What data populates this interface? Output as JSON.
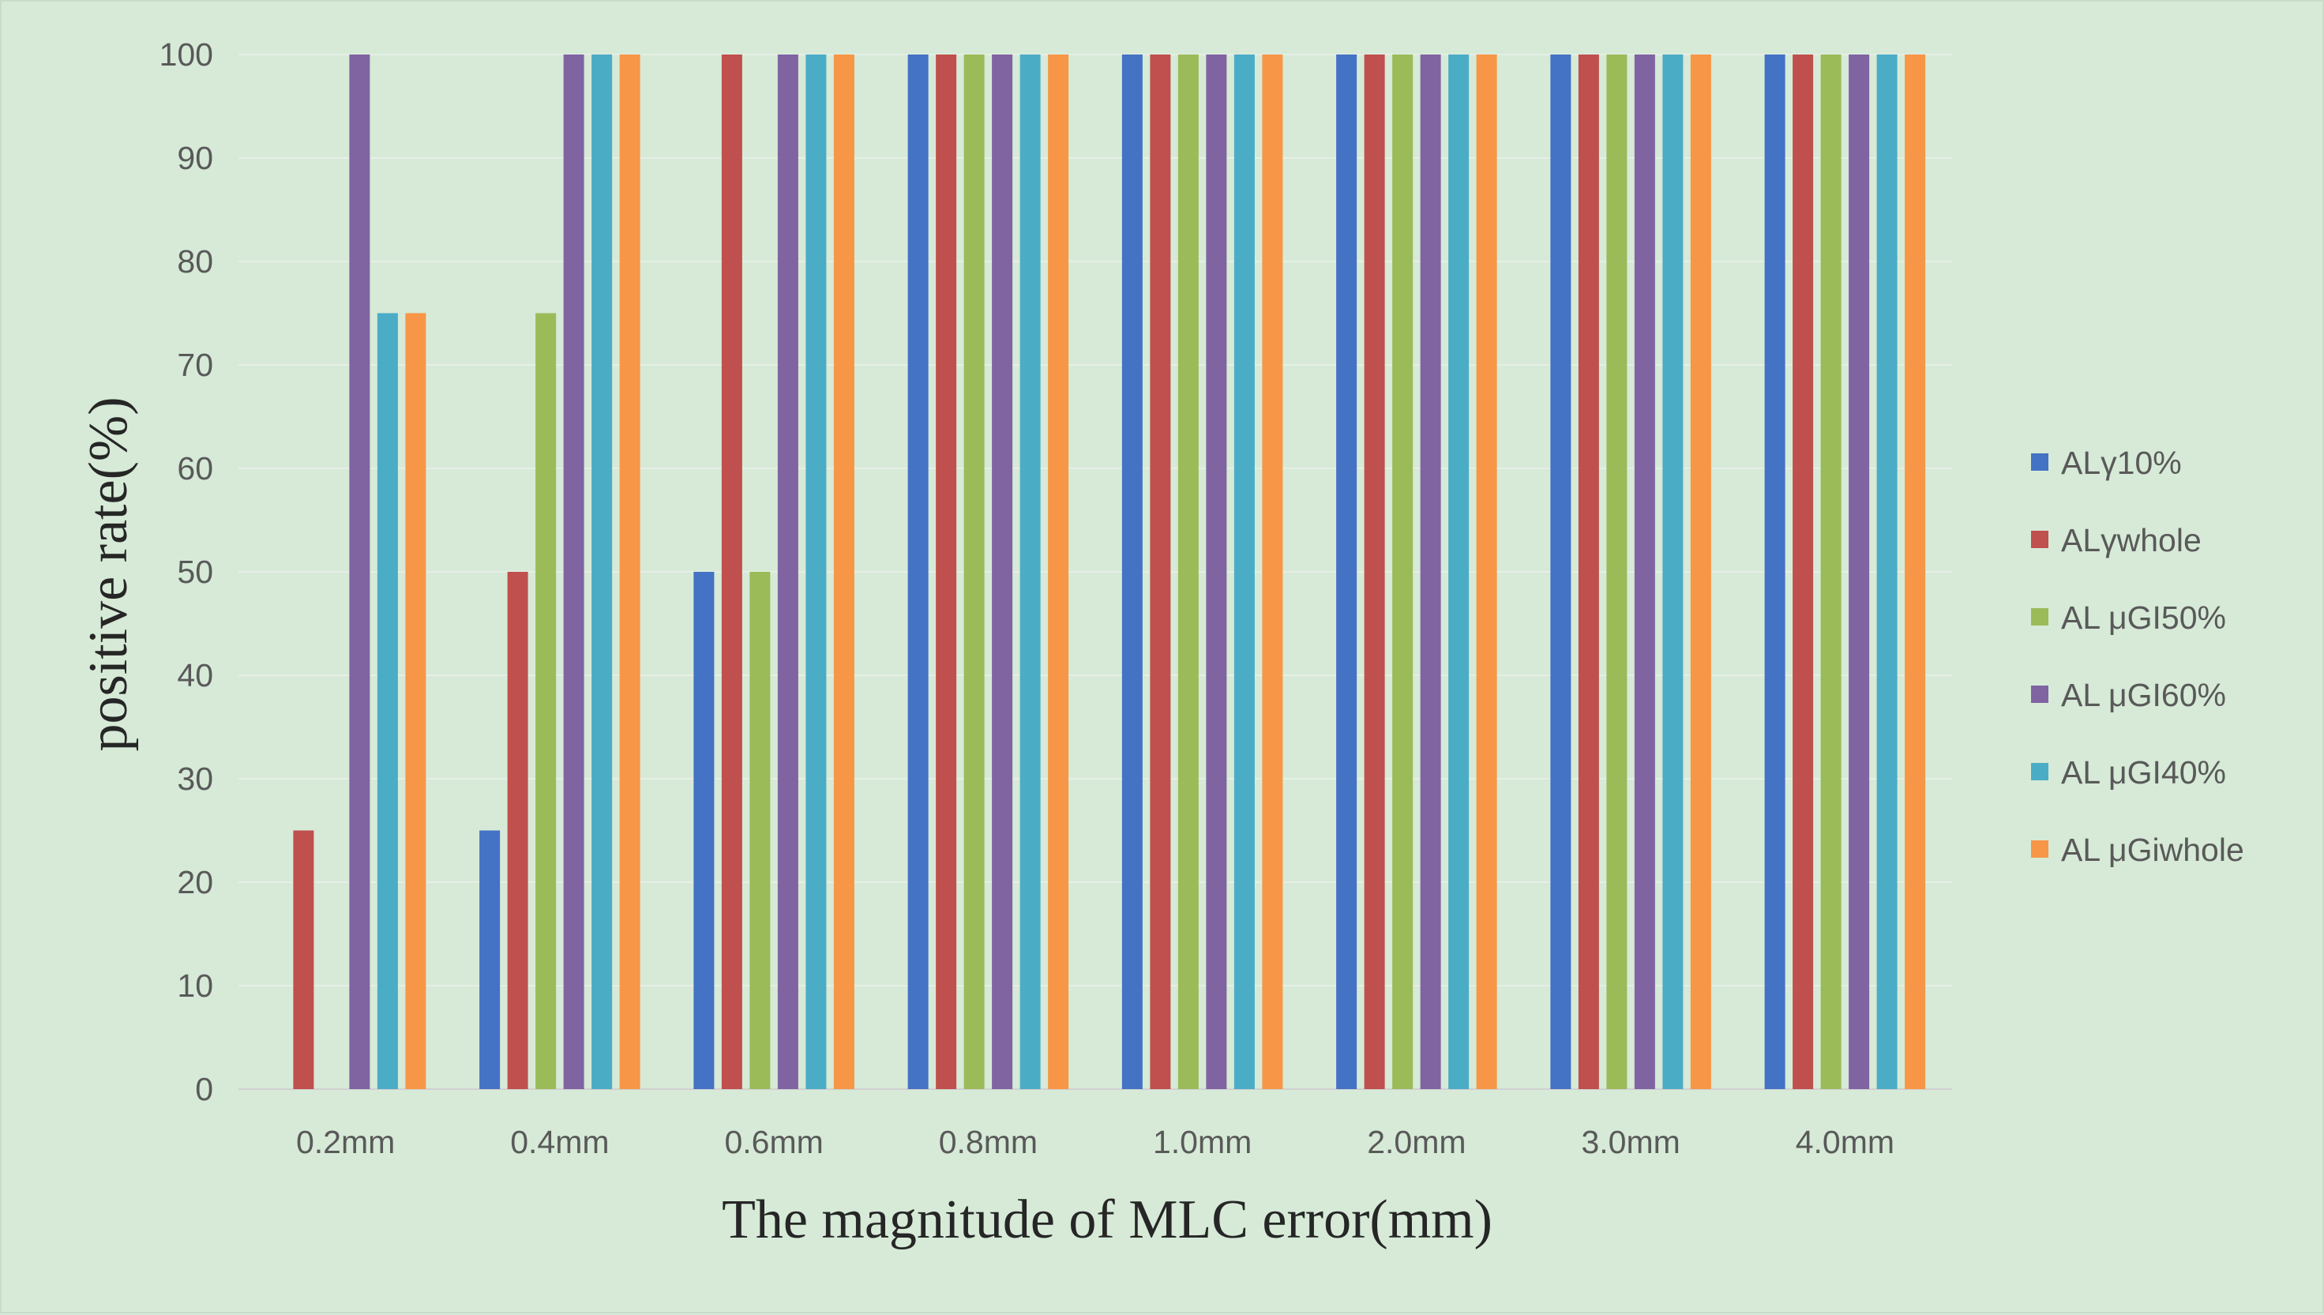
{
  "chart_data": {
    "type": "bar",
    "title": "",
    "xlabel": "The magnitude of MLC error(mm)",
    "ylabel": "positive rate(%)",
    "ylim": [
      0,
      100
    ],
    "yticks": [
      "0",
      "10",
      "20",
      "30",
      "40",
      "50",
      "60",
      "70",
      "80",
      "90",
      "100"
    ],
    "categories": [
      "0.2mm",
      "0.4mm",
      "0.6mm",
      "0.8mm",
      "1.0mm",
      "2.0mm",
      "3.0mm",
      "4.0mm"
    ],
    "grid": true,
    "legend_position": "right",
    "series": [
      {
        "name": "ALγ10%",
        "color": "#4472c4",
        "values": [
          0,
          25,
          50,
          100,
          100,
          100,
          100,
          100
        ]
      },
      {
        "name": "ALγwhole",
        "color": "#c0504d",
        "values": [
          25,
          50,
          100,
          100,
          100,
          100,
          100,
          100
        ]
      },
      {
        "name": "AL μGI50%",
        "color": "#9bbb59",
        "values": [
          0,
          75,
          50,
          100,
          100,
          100,
          100,
          100
        ]
      },
      {
        "name": "AL μGI60%",
        "color": "#8064a2",
        "values": [
          100,
          100,
          100,
          100,
          100,
          100,
          100,
          100
        ]
      },
      {
        "name": "AL μGI40%",
        "color": "#4bacc6",
        "values": [
          75,
          100,
          100,
          100,
          100,
          100,
          100,
          100
        ]
      },
      {
        "name": "AL μGiwhole",
        "color": "#f79646",
        "values": [
          75,
          100,
          100,
          100,
          100,
          100,
          100,
          100
        ]
      }
    ]
  }
}
